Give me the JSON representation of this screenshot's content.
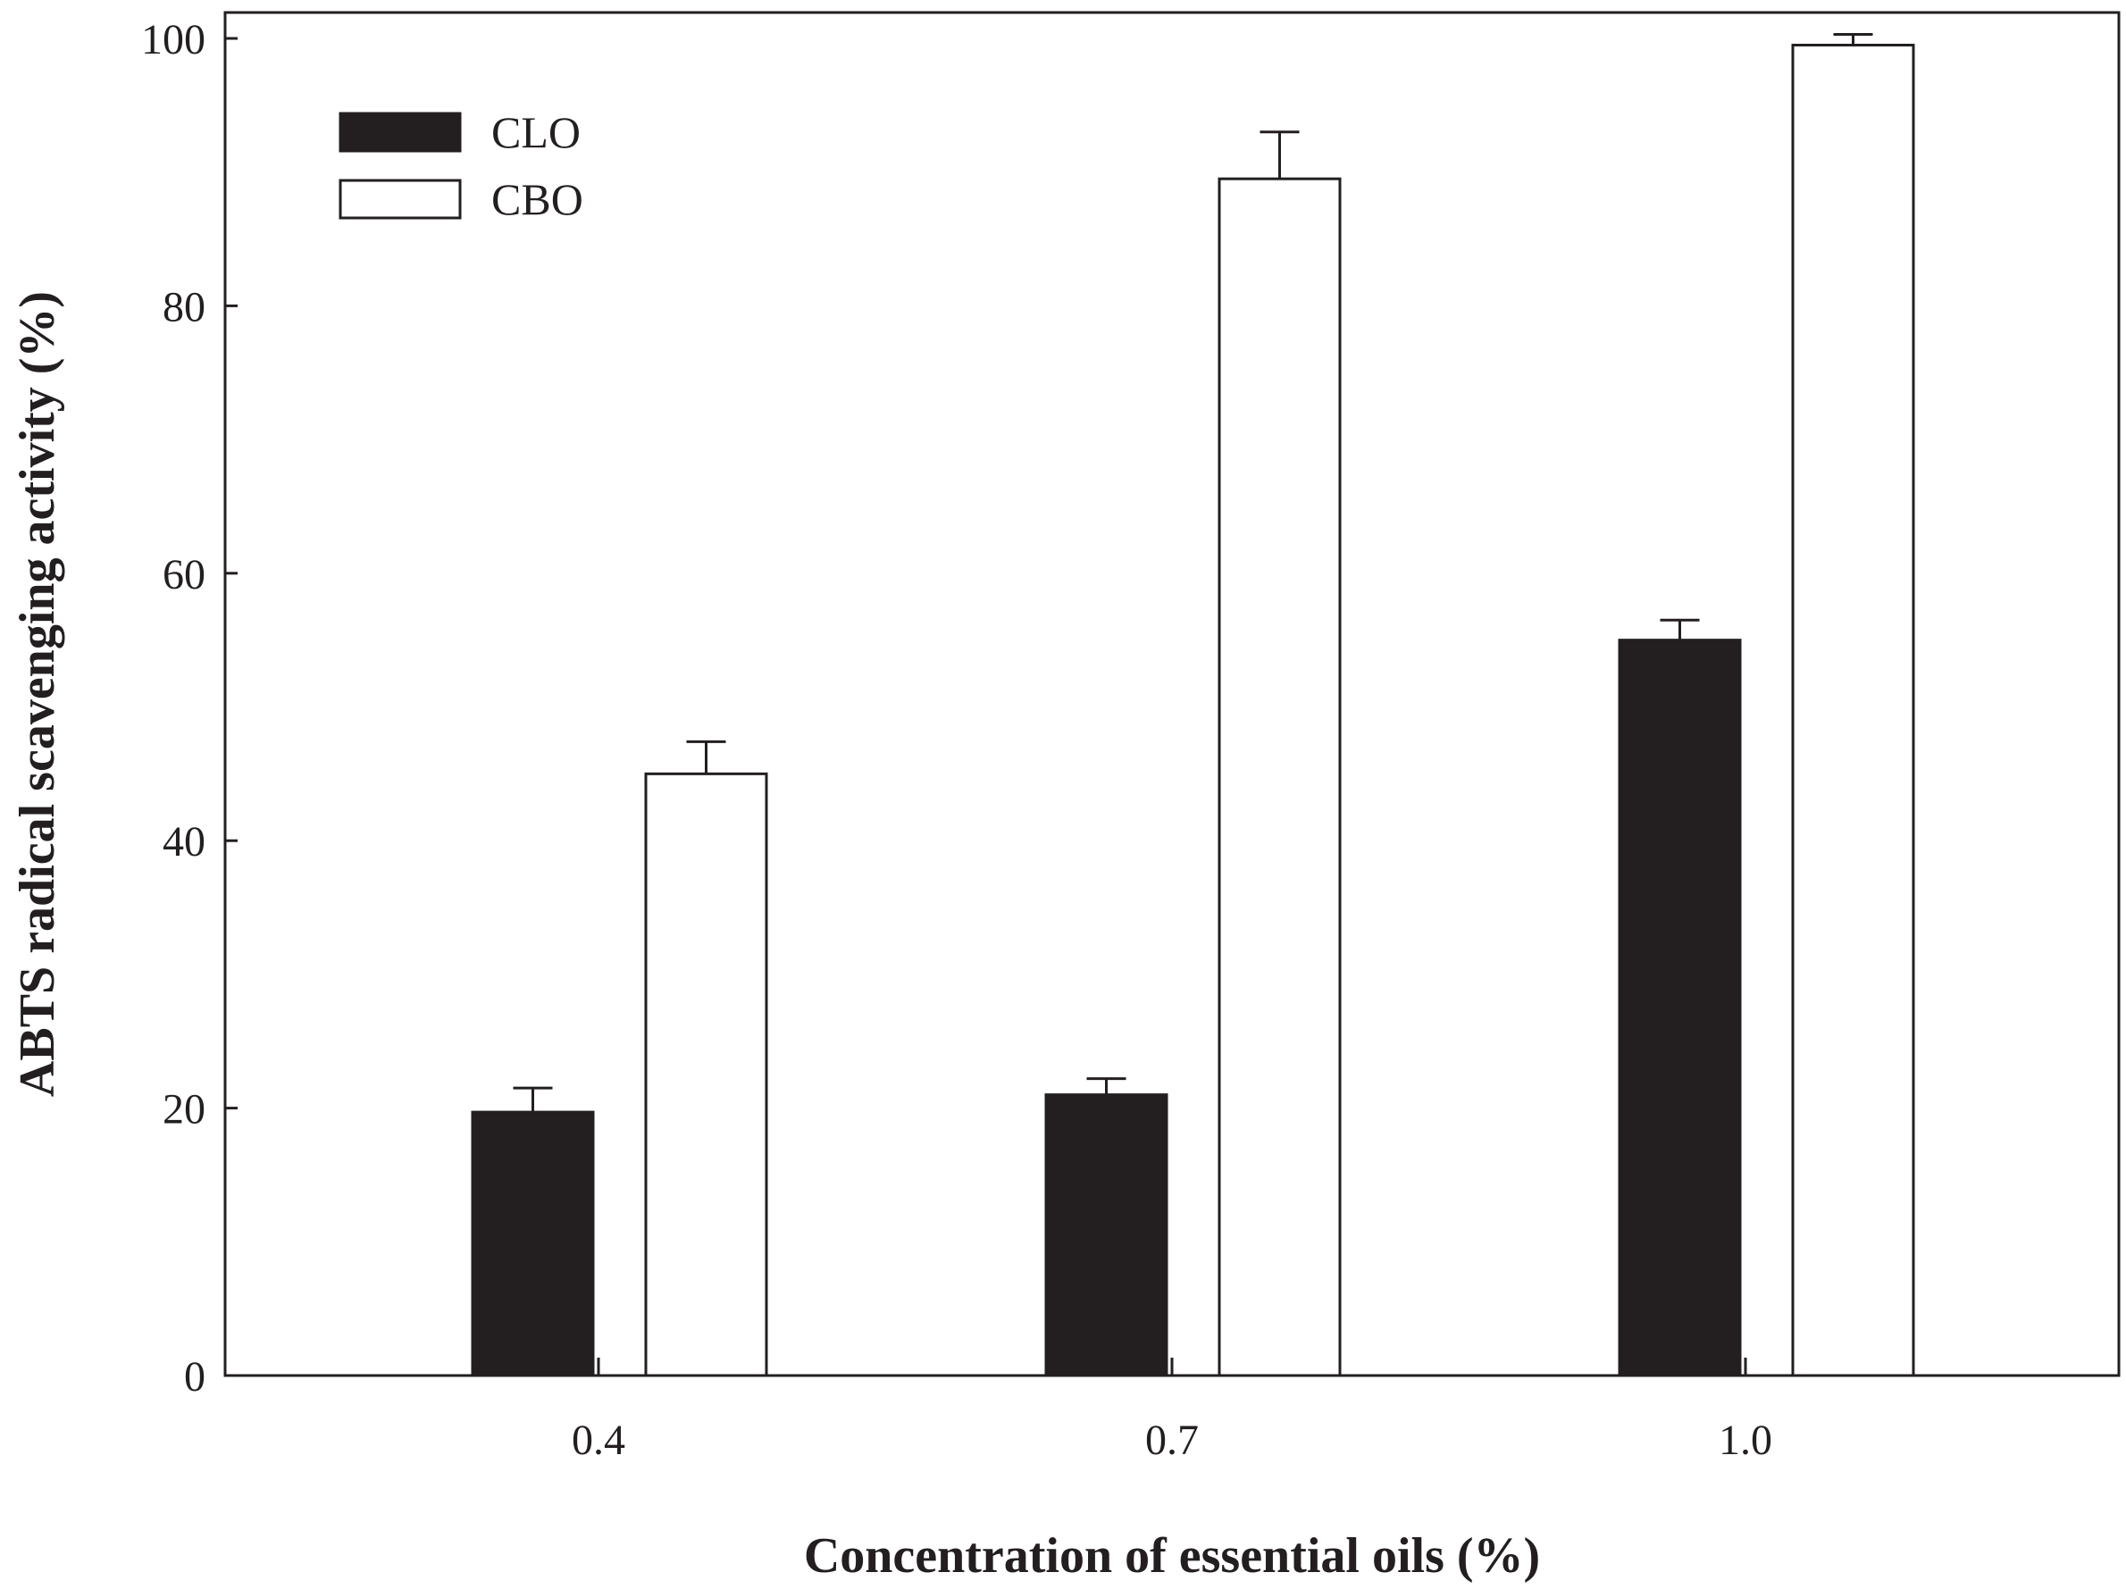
{
  "chart_data": {
    "type": "bar",
    "title": "",
    "xlabel": "Concentration of essential oils (%)",
    "ylabel": "ABTS radical scavenging activity (%)",
    "categories": [
      "0.4",
      "0.7",
      "1.0"
    ],
    "ylim": [
      0,
      100
    ],
    "yticks": [
      0,
      20,
      40,
      60,
      80,
      100
    ],
    "ytick_labels": [
      "0",
      "20",
      "40",
      "60",
      "80",
      "100"
    ],
    "grid": false,
    "legend_position": "top-left",
    "series": [
      {
        "name": "CLO",
        "fill": "#231f20",
        "values": [
          19.7,
          21.0,
          55.0
        ],
        "errors": [
          1.8,
          1.2,
          1.5
        ]
      },
      {
        "name": "CBO",
        "fill": "#ffffff",
        "values": [
          45.0,
          89.5,
          99.5
        ],
        "errors": [
          2.4,
          3.5,
          0.8
        ]
      }
    ]
  },
  "colors": {
    "ink": "#231f20",
    "background": "#ffffff"
  }
}
